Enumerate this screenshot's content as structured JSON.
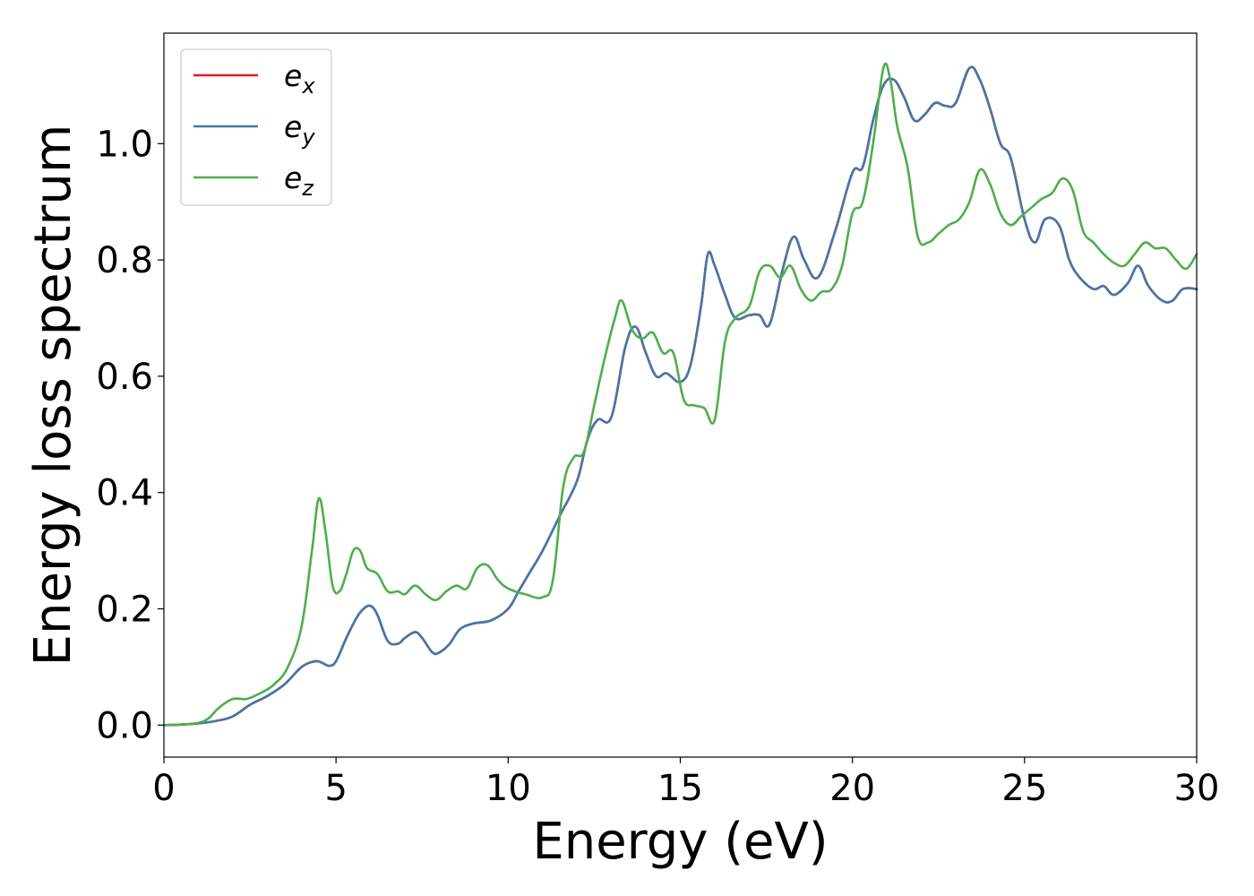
{
  "chart_data": {
    "type": "line",
    "xlabel": "Energy (eV)",
    "ylabel": "Energy loss spectrum",
    "xlim": [
      0,
      30
    ],
    "ylim": [
      -0.055,
      1.19
    ],
    "xticks": [
      0,
      5,
      10,
      15,
      20,
      25,
      30
    ],
    "xtick_labels": [
      "0",
      "5",
      "10",
      "15",
      "20",
      "25",
      "30"
    ],
    "yticks": [
      0.0,
      0.2,
      0.4,
      0.6,
      0.8,
      1.0
    ],
    "ytick_labels": [
      "0.0",
      "0.2",
      "0.4",
      "0.6",
      "0.8",
      "1.0"
    ],
    "grid": false,
    "legend_position": "top-left",
    "series": [
      {
        "name": "e_x",
        "label_base": "e",
        "label_sub": "x",
        "color": "#e41a1c",
        "x": [
          0,
          0.5,
          1,
          1.5,
          2,
          2.5,
          3,
          3.5,
          4,
          4.4,
          4.6,
          4.8,
          5,
          5.3,
          5.6,
          5.8,
          6,
          6.2,
          6.5,
          6.8,
          7,
          7.3,
          7.5,
          7.8,
          8,
          8.3,
          8.6,
          9,
          9.5,
          10,
          10.3,
          10.6,
          11,
          11.5,
          12,
          12.3,
          12.6,
          13,
          13.4,
          13.7,
          14,
          14.3,
          14.6,
          15,
          15.3,
          15.6,
          15.8,
          16,
          16.3,
          16.6,
          17,
          17.3,
          17.6,
          18,
          18.3,
          18.6,
          19,
          19.5,
          20,
          20.3,
          20.6,
          20.9,
          21.2,
          21.5,
          21.8,
          22.1,
          22.4,
          22.7,
          23,
          23.4,
          23.7,
          24,
          24.3,
          24.6,
          25,
          25.3,
          25.6,
          26,
          26.3,
          26.6,
          27,
          27.3,
          27.6,
          28,
          28.3,
          28.6,
          29,
          29.3,
          29.6,
          30
        ],
        "values": [
          0.0,
          0.001,
          0.003,
          0.007,
          0.015,
          0.035,
          0.05,
          0.07,
          0.1,
          0.11,
          0.107,
          0.102,
          0.11,
          0.15,
          0.185,
          0.2,
          0.205,
          0.19,
          0.145,
          0.14,
          0.15,
          0.16,
          0.15,
          0.125,
          0.125,
          0.14,
          0.165,
          0.175,
          0.18,
          0.2,
          0.23,
          0.26,
          0.3,
          0.36,
          0.42,
          0.49,
          0.525,
          0.53,
          0.65,
          0.685,
          0.64,
          0.6,
          0.605,
          0.59,
          0.62,
          0.72,
          0.81,
          0.79,
          0.74,
          0.7,
          0.705,
          0.705,
          0.69,
          0.79,
          0.84,
          0.8,
          0.77,
          0.85,
          0.95,
          0.96,
          1.04,
          1.1,
          1.11,
          1.08,
          1.04,
          1.05,
          1.07,
          1.065,
          1.07,
          1.13,
          1.11,
          1.06,
          1.0,
          0.975,
          0.87,
          0.83,
          0.87,
          0.86,
          0.8,
          0.77,
          0.75,
          0.755,
          0.74,
          0.76,
          0.79,
          0.755,
          0.73,
          0.73,
          0.75,
          0.75
        ]
      },
      {
        "name": "e_y",
        "label_base": "e",
        "label_sub": "y",
        "color": "#4477aa",
        "x": [
          0,
          0.5,
          1,
          1.5,
          2,
          2.5,
          3,
          3.5,
          4,
          4.4,
          4.6,
          4.8,
          5,
          5.3,
          5.6,
          5.8,
          6,
          6.2,
          6.5,
          6.8,
          7,
          7.3,
          7.5,
          7.8,
          8,
          8.3,
          8.6,
          9,
          9.5,
          10,
          10.3,
          10.6,
          11,
          11.5,
          12,
          12.3,
          12.6,
          13,
          13.4,
          13.7,
          14,
          14.3,
          14.6,
          15,
          15.3,
          15.6,
          15.8,
          16,
          16.3,
          16.6,
          17,
          17.3,
          17.6,
          18,
          18.3,
          18.6,
          19,
          19.5,
          20,
          20.3,
          20.6,
          20.9,
          21.2,
          21.5,
          21.8,
          22.1,
          22.4,
          22.7,
          23,
          23.4,
          23.7,
          24,
          24.3,
          24.6,
          25,
          25.3,
          25.6,
          26,
          26.3,
          26.6,
          27,
          27.3,
          27.6,
          28,
          28.3,
          28.6,
          29,
          29.3,
          29.6,
          30
        ],
        "values": [
          0.0,
          0.001,
          0.003,
          0.007,
          0.015,
          0.035,
          0.05,
          0.07,
          0.1,
          0.11,
          0.107,
          0.102,
          0.11,
          0.15,
          0.185,
          0.2,
          0.205,
          0.19,
          0.145,
          0.14,
          0.15,
          0.16,
          0.15,
          0.125,
          0.125,
          0.14,
          0.165,
          0.175,
          0.18,
          0.2,
          0.23,
          0.26,
          0.3,
          0.36,
          0.42,
          0.49,
          0.525,
          0.53,
          0.65,
          0.685,
          0.64,
          0.6,
          0.605,
          0.59,
          0.62,
          0.72,
          0.81,
          0.79,
          0.74,
          0.7,
          0.705,
          0.705,
          0.69,
          0.79,
          0.84,
          0.8,
          0.77,
          0.85,
          0.95,
          0.96,
          1.04,
          1.1,
          1.11,
          1.08,
          1.04,
          1.05,
          1.07,
          1.065,
          1.07,
          1.13,
          1.11,
          1.06,
          1.0,
          0.975,
          0.87,
          0.83,
          0.87,
          0.86,
          0.8,
          0.77,
          0.75,
          0.755,
          0.74,
          0.76,
          0.79,
          0.755,
          0.73,
          0.73,
          0.75,
          0.75
        ]
      },
      {
        "name": "e_z",
        "label_base": "e",
        "label_sub": "z",
        "color": "#4daf4a",
        "x": [
          0,
          0.5,
          1,
          1.3,
          1.6,
          2,
          2.4,
          2.8,
          3.2,
          3.6,
          4,
          4.3,
          4.5,
          4.7,
          4.9,
          5.1,
          5.3,
          5.5,
          5.7,
          5.9,
          6.2,
          6.5,
          6.8,
          7,
          7.3,
          7.6,
          7.9,
          8.2,
          8.5,
          8.8,
          9.1,
          9.4,
          9.7,
          10,
          10.5,
          11,
          11.3,
          11.6,
          11.9,
          12.2,
          12.5,
          12.8,
          13.1,
          13.3,
          13.6,
          13.9,
          14.2,
          14.5,
          14.8,
          15.1,
          15.4,
          15.7,
          16,
          16.3,
          16.6,
          17,
          17.3,
          17.6,
          17.9,
          18.2,
          18.5,
          18.8,
          19.1,
          19.4,
          19.7,
          20,
          20.3,
          20.6,
          20.9,
          21.1,
          21.3,
          21.6,
          21.9,
          22.2,
          22.5,
          22.8,
          23.1,
          23.4,
          23.7,
          24,
          24.3,
          24.6,
          24.9,
          25.2,
          25.5,
          25.8,
          26.1,
          26.4,
          26.7,
          27,
          27.3,
          27.6,
          27.9,
          28.2,
          28.5,
          28.8,
          29.1,
          29.4,
          29.7,
          30
        ],
        "values": [
          0.0,
          0.001,
          0.004,
          0.012,
          0.03,
          0.045,
          0.045,
          0.055,
          0.07,
          0.1,
          0.17,
          0.3,
          0.39,
          0.33,
          0.24,
          0.23,
          0.26,
          0.3,
          0.3,
          0.27,
          0.26,
          0.23,
          0.23,
          0.225,
          0.24,
          0.225,
          0.215,
          0.23,
          0.24,
          0.235,
          0.27,
          0.275,
          0.25,
          0.235,
          0.225,
          0.22,
          0.25,
          0.41,
          0.46,
          0.47,
          0.55,
          0.63,
          0.7,
          0.73,
          0.68,
          0.665,
          0.675,
          0.64,
          0.64,
          0.56,
          0.55,
          0.545,
          0.525,
          0.66,
          0.7,
          0.72,
          0.78,
          0.79,
          0.77,
          0.79,
          0.75,
          0.73,
          0.745,
          0.75,
          0.79,
          0.88,
          0.9,
          1.0,
          1.13,
          1.11,
          1.03,
          0.96,
          0.84,
          0.83,
          0.845,
          0.86,
          0.87,
          0.9,
          0.955,
          0.93,
          0.88,
          0.86,
          0.875,
          0.89,
          0.905,
          0.915,
          0.94,
          0.92,
          0.85,
          0.83,
          0.81,
          0.795,
          0.79,
          0.81,
          0.83,
          0.82,
          0.82,
          0.8,
          0.785,
          0.81
        ]
      }
    ]
  }
}
